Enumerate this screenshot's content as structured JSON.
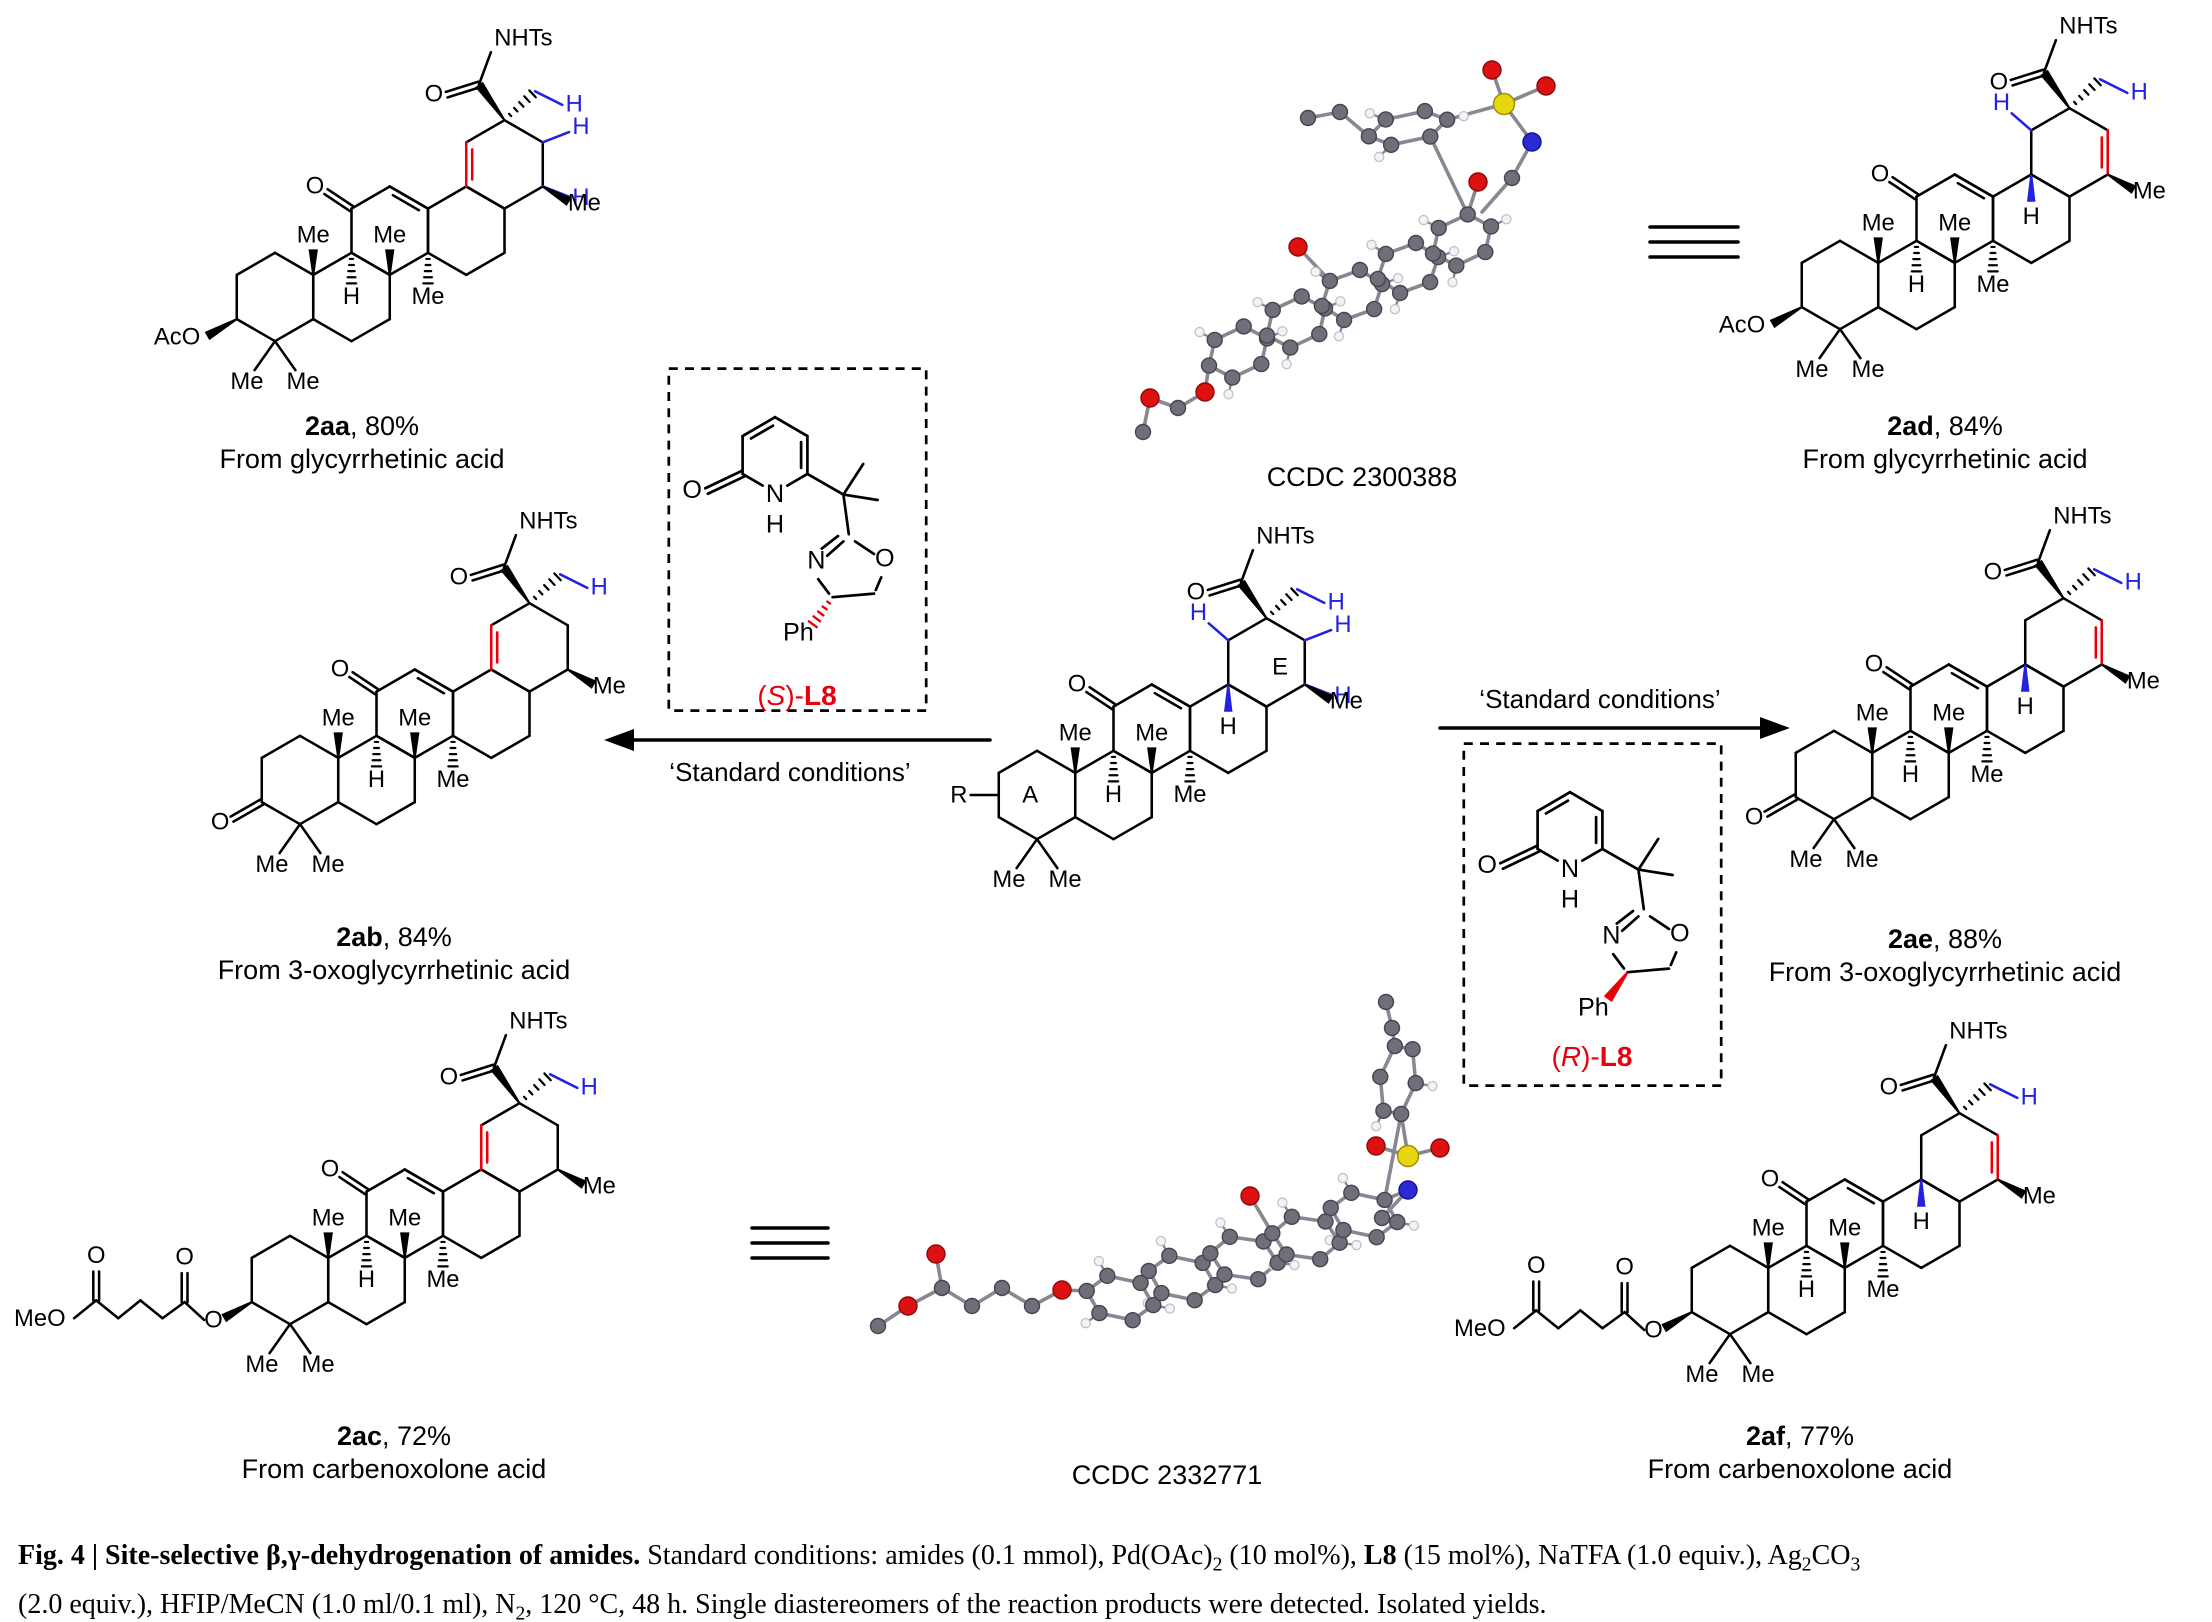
{
  "palette": {
    "black": "#000000",
    "red": "#e8000b",
    "blue": "#2222e0",
    "crystal_bond": "#8a8692",
    "carbon": "#716d79",
    "oxygen": "#dd1111",
    "nitrogen": "#2b2bd5",
    "sulfur": "#e8d60f",
    "hydrogen": "#f4f2f5"
  },
  "labels": {
    "o": "O",
    "n": "N",
    "h": "H",
    "me": "Me",
    "aco": "AcO",
    "meo": "MeO",
    "nhts": "NHTs",
    "ph": "Ph",
    "r": "R",
    "ring_a": "A",
    "ring_e": "E"
  },
  "structures": [
    {
      "id": "sub",
      "c3": "r",
      "ene": "none",
      "blue_h": [
        "methyl",
        "tl",
        "tr",
        "br"
      ],
      "bold_h18": "blue",
      "ring_labels": true
    },
    {
      "id": "2aa",
      "c3": "aco",
      "ene": "left",
      "blue_h": [
        "methyl",
        "tr",
        "br"
      ],
      "bold_h18": null,
      "ring_labels": false
    },
    {
      "id": "2ab",
      "c3": "oxo",
      "ene": "left",
      "blue_h": [
        "methyl"
      ],
      "bold_h18": null,
      "ring_labels": false
    },
    {
      "id": "2ac",
      "c3": "ester",
      "ene": "left",
      "blue_h": [
        "methyl"
      ],
      "bold_h18": null,
      "ring_labels": false
    },
    {
      "id": "2ad",
      "c3": "aco",
      "ene": "right",
      "blue_h": [
        "methyl",
        "tl"
      ],
      "bold_h18": "blue",
      "ring_labels": false
    },
    {
      "id": "2ae",
      "c3": "oxo",
      "ene": "right",
      "blue_h": [
        "methyl"
      ],
      "bold_h18": "blue",
      "ring_labels": false
    },
    {
      "id": "2af",
      "c3": "ester",
      "ene": "right",
      "blue_h": [
        "methyl"
      ],
      "bold_h18": "blue",
      "ring_labels": false
    }
  ],
  "products": [
    {
      "code": "2aa",
      "suffix": ", 80%",
      "source": "From glycyrrhetinic acid"
    },
    {
      "code": "2ab",
      "suffix": ", 84%",
      "source": "From 3-oxoglycyrrhetinic acid"
    },
    {
      "code": "2ac",
      "suffix": ", 72%",
      "source": "From carbenoxolone acid"
    },
    {
      "code": "2ad",
      "suffix": ", 84%",
      "source": "From glycyrrhetinic acid"
    },
    {
      "code": "2ae",
      "suffix": ", 88%",
      "source": "From 3-oxoglycyrrhetinic acid"
    },
    {
      "code": "2af",
      "suffix": ", 77%",
      "source": "From carbenoxolone acid"
    }
  ],
  "ligands": [
    {
      "open": "(",
      "stereo": "S",
      "close": ")-",
      "name": "L8"
    },
    {
      "open": "(",
      "stereo": "R",
      "close": ")-",
      "name": "L8"
    }
  ],
  "conditions": {
    "left": "‘Standard conditions’",
    "right": "‘Standard conditions’"
  },
  "ccdc": [
    "CCDC 2300388",
    "CCDC 2332771"
  ],
  "caption": {
    "segments": [
      {
        "b": 1,
        "t": "Fig. 4 | Site-selective β,γ-dehydrogenation of amides. "
      },
      {
        "t": "Standard conditions: amides (0.1 mmol), Pd(OAc)"
      },
      {
        "sub": 1,
        "t": "2"
      },
      {
        "t": " (10 mol%), "
      },
      {
        "b": 1,
        "t": "L8"
      },
      {
        "t": " (15 mol%), NaTFA (1.0 equiv.), Ag"
      },
      {
        "sub": 1,
        "t": "2"
      },
      {
        "t": "CO"
      },
      {
        "sub": 1,
        "t": "3"
      },
      {
        "br": 1
      },
      {
        "t": "(2.0 equiv.), HFIP/MeCN (1.0 ml/0.1 ml), N"
      },
      {
        "sub": 1,
        "t": "2"
      },
      {
        "t": ", 120 °C, 48 h. Single diastereomers of the reaction products were detected. Isolated yields."
      }
    ]
  }
}
